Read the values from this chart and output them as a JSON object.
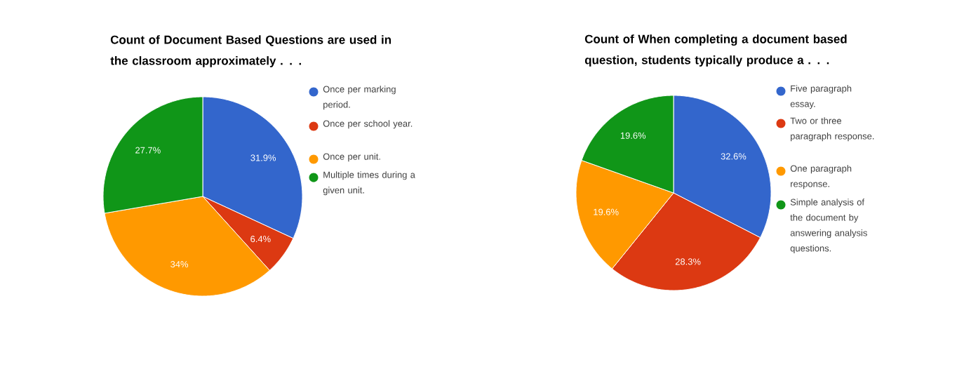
{
  "chart_data": [
    {
      "type": "pie",
      "title": "Count of Document Based Questions are used in the classroom approximately . . .",
      "categories": [
        "Once per marking period.",
        "Once per school year.",
        "Once per unit.",
        "Multiple times during a given unit."
      ],
      "values": [
        31.9,
        6.4,
        34,
        27.7
      ],
      "colors": [
        "#3366cc",
        "#dc3912",
        "#ff9900",
        "#109618"
      ],
      "value_labels": [
        "31.9%",
        "6.4%",
        "34%",
        "27.7%"
      ],
      "legend": "right"
    },
    {
      "type": "pie",
      "title": "Count of When completing a document based question, students typically produce a . . .",
      "categories": [
        "Five paragraph essay.",
        "Two or three paragraph response.",
        "One paragraph response.",
        "Simple analysis of the document by answering analysis questions."
      ],
      "values": [
        32.6,
        28.3,
        19.6,
        19.6
      ],
      "colors": [
        "#3366cc",
        "#dc3912",
        "#ff9900",
        "#109618"
      ],
      "value_labels": [
        "32.6%",
        "28.3%",
        "19.6%",
        "19.6%"
      ],
      "legend": "right"
    }
  ]
}
